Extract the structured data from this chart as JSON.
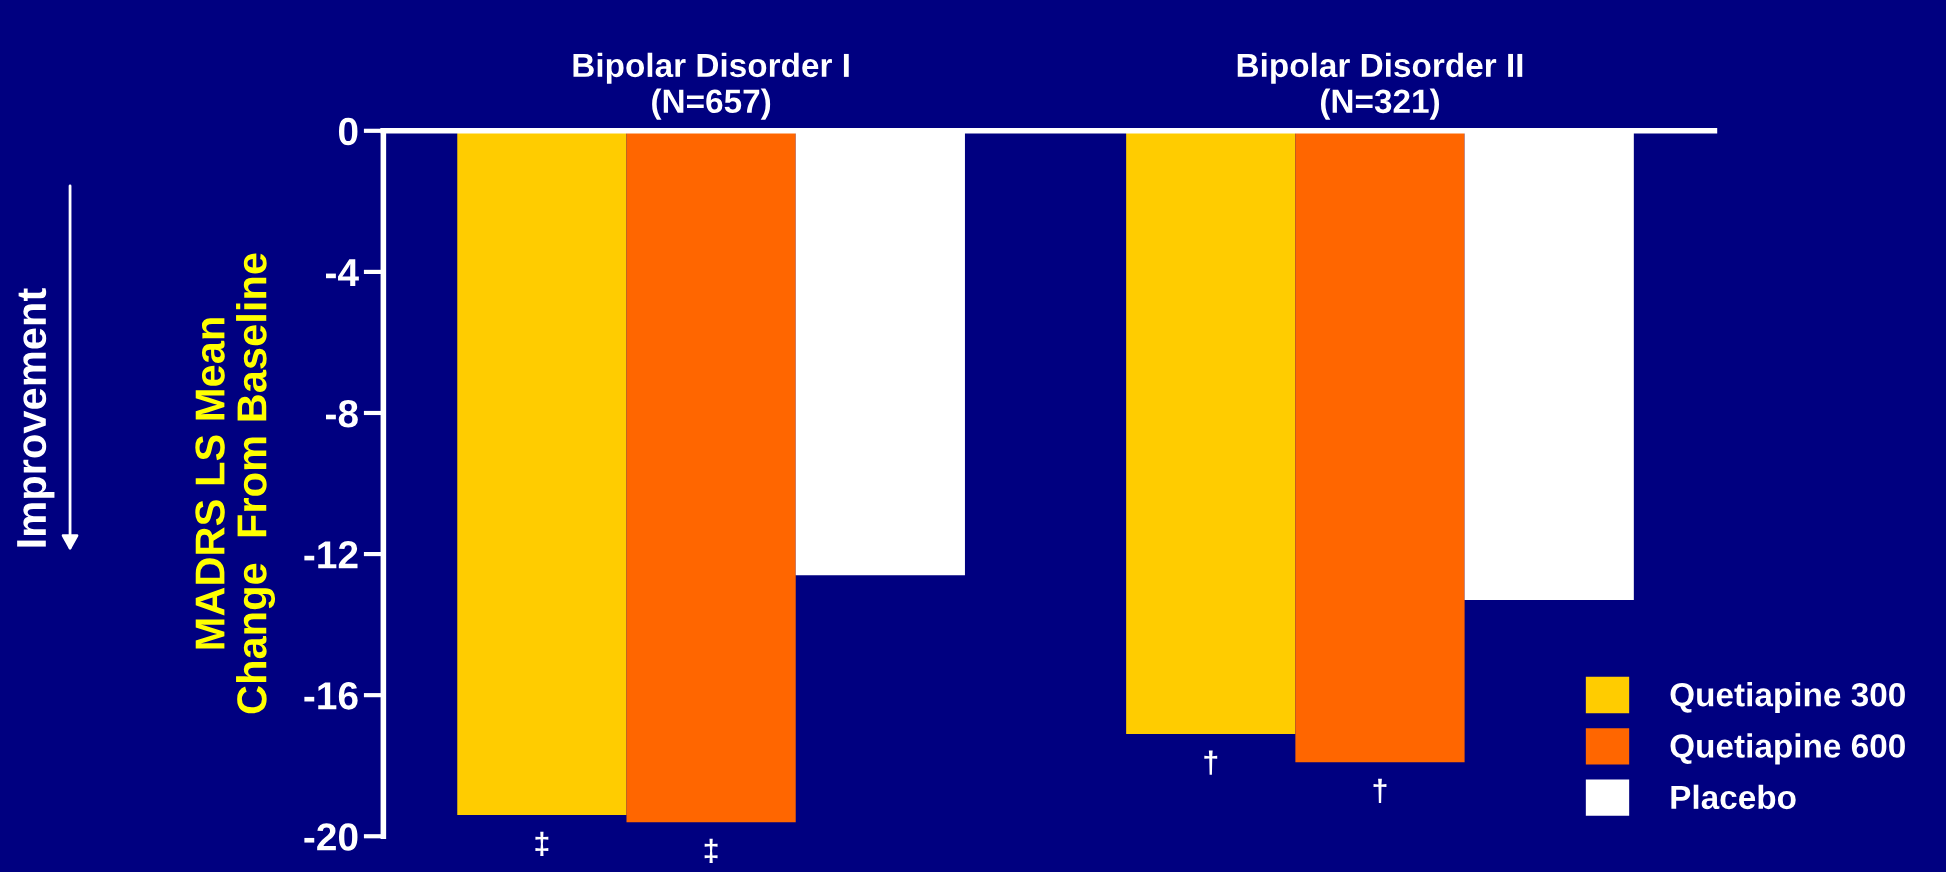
{
  "chart_data": {
    "type": "bar",
    "categories": [
      "Bipolar Disorder I\n(N=657)",
      "Bipolar Disorder II\n(N=321)"
    ],
    "series": [
      {
        "name": "Quetiapine 300",
        "color": "#ffcc00",
        "values": [
          -19.4,
          -17.1
        ]
      },
      {
        "name": "Quetiapine 600",
        "color": "#ff6600",
        "values": [
          -19.6,
          -17.9
        ]
      },
      {
        "name": "Placebo",
        "color": "#ffffff",
        "values": [
          -12.6,
          -13.3
        ]
      }
    ],
    "ylabel": "MADRS LS Mean\nChange  From Baseline",
    "ylim": [
      -20,
      0
    ],
    "yticks": [
      0,
      -4,
      -8,
      -12,
      -16,
      -20
    ],
    "annotations": [
      "Improvement",
      "‡",
      "‡",
      "†",
      "†"
    ],
    "legend": "bottom right",
    "grid": false
  }
}
